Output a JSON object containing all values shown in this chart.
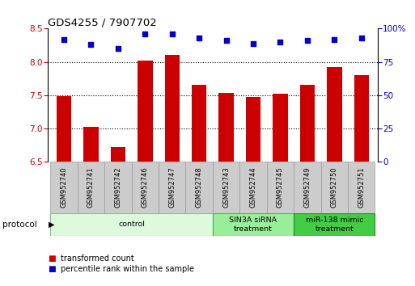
{
  "title": "GDS4255 / 7907702",
  "samples": [
    "GSM952740",
    "GSM952741",
    "GSM952742",
    "GSM952746",
    "GSM952747",
    "GSM952748",
    "GSM952743",
    "GSM952744",
    "GSM952745",
    "GSM952749",
    "GSM952750",
    "GSM952751"
  ],
  "bar_values": [
    7.48,
    7.02,
    6.72,
    8.02,
    8.1,
    7.65,
    7.53,
    7.47,
    7.52,
    7.65,
    7.92,
    7.8
  ],
  "scatter_values": [
    92,
    88,
    85,
    96,
    96,
    93,
    91,
    89,
    90,
    91,
    92,
    93
  ],
  "ylim_left": [
    6.5,
    8.5
  ],
  "ylim_right": [
    0,
    100
  ],
  "yticks_left": [
    6.5,
    7.0,
    7.5,
    8.0,
    8.5
  ],
  "yticks_right": [
    0,
    25,
    50,
    75,
    100
  ],
  "ytick_labels_right": [
    "0",
    "25",
    "50",
    "75",
    "100%"
  ],
  "bar_color": "#cc0000",
  "scatter_color": "#0000cc",
  "groups": [
    {
      "label": "control",
      "start": 0,
      "end": 5,
      "color": "#ddfadd",
      "border": "#88bb88"
    },
    {
      "label": "SIN3A siRNA\ntreatment",
      "start": 6,
      "end": 8,
      "color": "#99ee99",
      "border": "#55aa55"
    },
    {
      "label": "miR-138 mimic\ntreatment",
      "start": 9,
      "end": 11,
      "color": "#44cc44",
      "border": "#228822"
    }
  ],
  "legend_items": [
    {
      "label": "transformed count",
      "color": "#cc0000"
    },
    {
      "label": "percentile rank within the sample",
      "color": "#0000cc"
    }
  ],
  "protocol_label": "protocol",
  "bar_width": 0.55
}
